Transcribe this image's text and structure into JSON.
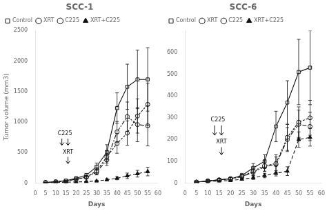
{
  "chart_data": [
    {
      "type": "line",
      "title": "SCC-1",
      "x_label": "Days",
      "y_label": "Tumor volume (mm3)",
      "xlim": [
        0,
        60
      ],
      "ylim": [
        0,
        2500
      ],
      "xticks": [
        0,
        5,
        10,
        15,
        20,
        25,
        30,
        35,
        40,
        45,
        50,
        55,
        60
      ],
      "yticks": [
        0,
        500,
        1000,
        1500,
        2000,
        2500
      ],
      "grid": false,
      "legend": "upper left",
      "x": [
        5,
        10,
        15,
        20,
        25,
        30,
        35,
        40,
        45,
        50,
        55
      ],
      "series": [
        {
          "name": "Control",
          "color": "#111111",
          "marker": "open_square",
          "line_style": "solid",
          "values": [
            10,
            25,
            40,
            80,
            130,
            270,
            510,
            1230,
            1580,
            1700,
            1700
          ],
          "errors": [
            5,
            8,
            10,
            20,
            30,
            60,
            120,
            250,
            370,
            480,
            520
          ]
        },
        {
          "name": "XRT",
          "color": "#111111",
          "marker": "open_circle",
          "line_style": "dotted",
          "values": [
            10,
            20,
            35,
            70,
            100,
            200,
            430,
            650,
            820,
            1100,
            1290
          ],
          "errors": [
            5,
            8,
            10,
            15,
            25,
            50,
            100,
            160,
            200,
            280,
            350
          ]
        },
        {
          "name": "C225",
          "color": "#111111",
          "marker": "open_circle",
          "line_style": "dashdot",
          "values": [
            10,
            20,
            35,
            65,
            95,
            180,
            380,
            840,
            1090,
            960,
            940
          ],
          "errors": [
            5,
            8,
            10,
            15,
            25,
            45,
            90,
            170,
            240,
            280,
            330
          ]
        },
        {
          "name": "XRT+C225",
          "color": "#111111",
          "marker": "filled_triangle",
          "line_style": "dashed",
          "values": [
            5,
            10,
            15,
            20,
            25,
            35,
            55,
            80,
            120,
            155,
            190
          ],
          "errors": [
            2,
            4,
            5,
            6,
            8,
            12,
            18,
            25,
            45,
            55,
            70
          ]
        }
      ],
      "arrows": [
        {
          "x": 13,
          "y_start": 730,
          "y_end": 620
        },
        {
          "x": 16,
          "y_start": 730,
          "y_end": 620
        },
        {
          "x": 16,
          "y_start": 430,
          "y_end": 320
        }
      ],
      "annotations": [
        {
          "text": "C225",
          "x": 14.5,
          "y": 760
        },
        {
          "text": "XRT",
          "x": 16,
          "y": 460
        }
      ]
    },
    {
      "type": "line",
      "title": "SCC-6",
      "x_label": "Days",
      "xlim": [
        0,
        60
      ],
      "ylim": [
        0,
        700
      ],
      "xticks": [
        0,
        5,
        10,
        15,
        20,
        25,
        30,
        35,
        40,
        45,
        50,
        55,
        60
      ],
      "yticks": [
        0,
        100,
        200,
        300,
        400,
        500,
        600
      ],
      "grid": false,
      "legend": "upper left",
      "x": [
        5,
        10,
        15,
        20,
        25,
        30,
        35,
        40,
        45,
        50,
        55
      ],
      "series": [
        {
          "name": "Control",
          "color": "#111111",
          "marker": "open_square",
          "line_style": "solid",
          "values": [
            5,
            10,
            15,
            20,
            35,
            70,
            100,
            260,
            370,
            510,
            530
          ],
          "errors": [
            2,
            4,
            5,
            6,
            10,
            20,
            30,
            70,
            100,
            150,
            170
          ]
        },
        {
          "name": "XRT",
          "color": "#111111",
          "marker": "open_circle",
          "line_style": "dotted",
          "values": [
            5,
            10,
            15,
            20,
            30,
            55,
            80,
            90,
            210,
            280,
            300
          ],
          "errors": [
            2,
            4,
            5,
            6,
            8,
            15,
            25,
            40,
            60,
            70,
            80
          ]
        },
        {
          "name": "C225",
          "color": "#111111",
          "marker": "open_circle",
          "line_style": "dashdot",
          "values": [
            5,
            10,
            15,
            20,
            30,
            50,
            75,
            85,
            200,
            270,
            260
          ],
          "errors": [
            2,
            4,
            5,
            6,
            8,
            15,
            22,
            35,
            55,
            65,
            65
          ]
        },
        {
          "name": "XRT+C225",
          "color": "#111111",
          "marker": "filled_triangle",
          "line_style": "dashed",
          "values": [
            5,
            8,
            10,
            12,
            18,
            25,
            35,
            45,
            55,
            200,
            210
          ],
          "errors": [
            2,
            3,
            3,
            4,
            5,
            8,
            10,
            12,
            20,
            35,
            40
          ]
        }
      ],
      "arrows": [
        {
          "x": 13,
          "y_start": 265,
          "y_end": 220
        },
        {
          "x": 16,
          "y_start": 265,
          "y_end": 220
        },
        {
          "x": 16,
          "y_start": 165,
          "y_end": 130
        }
      ],
      "annotations": [
        {
          "text": "C225",
          "x": 14.5,
          "y": 278
        },
        {
          "text": "XRT",
          "x": 16,
          "y": 175
        }
      ]
    }
  ]
}
